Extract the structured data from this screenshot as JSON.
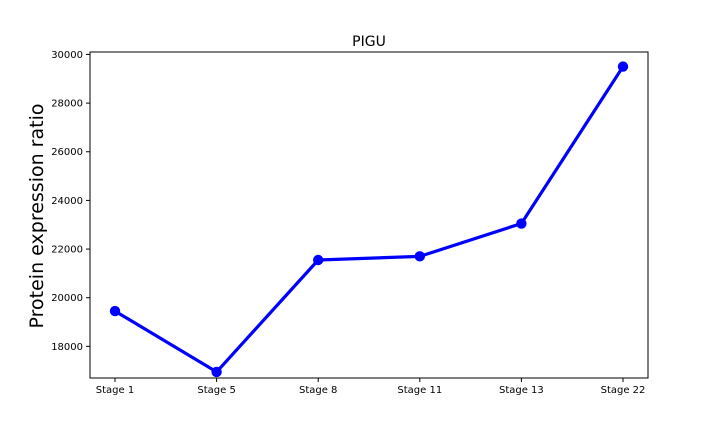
{
  "chart_data": {
    "type": "line",
    "title": "PIGU",
    "xlabel": "",
    "ylabel": "Protein expression ratio",
    "categories": [
      "Stage 1",
      "Stage 5",
      "Stage 8",
      "Stage 11",
      "Stage 13",
      "Stage 22"
    ],
    "series": [
      {
        "values": [
          19450,
          16950,
          21550,
          21700,
          23050,
          29500
        ],
        "color": "#0000ff"
      }
    ],
    "ylim": [
      16700,
      30100
    ],
    "yticks": [
      18000,
      20000,
      22000,
      24000,
      26000,
      28000,
      30000
    ],
    "grid": false,
    "legend": "none"
  }
}
